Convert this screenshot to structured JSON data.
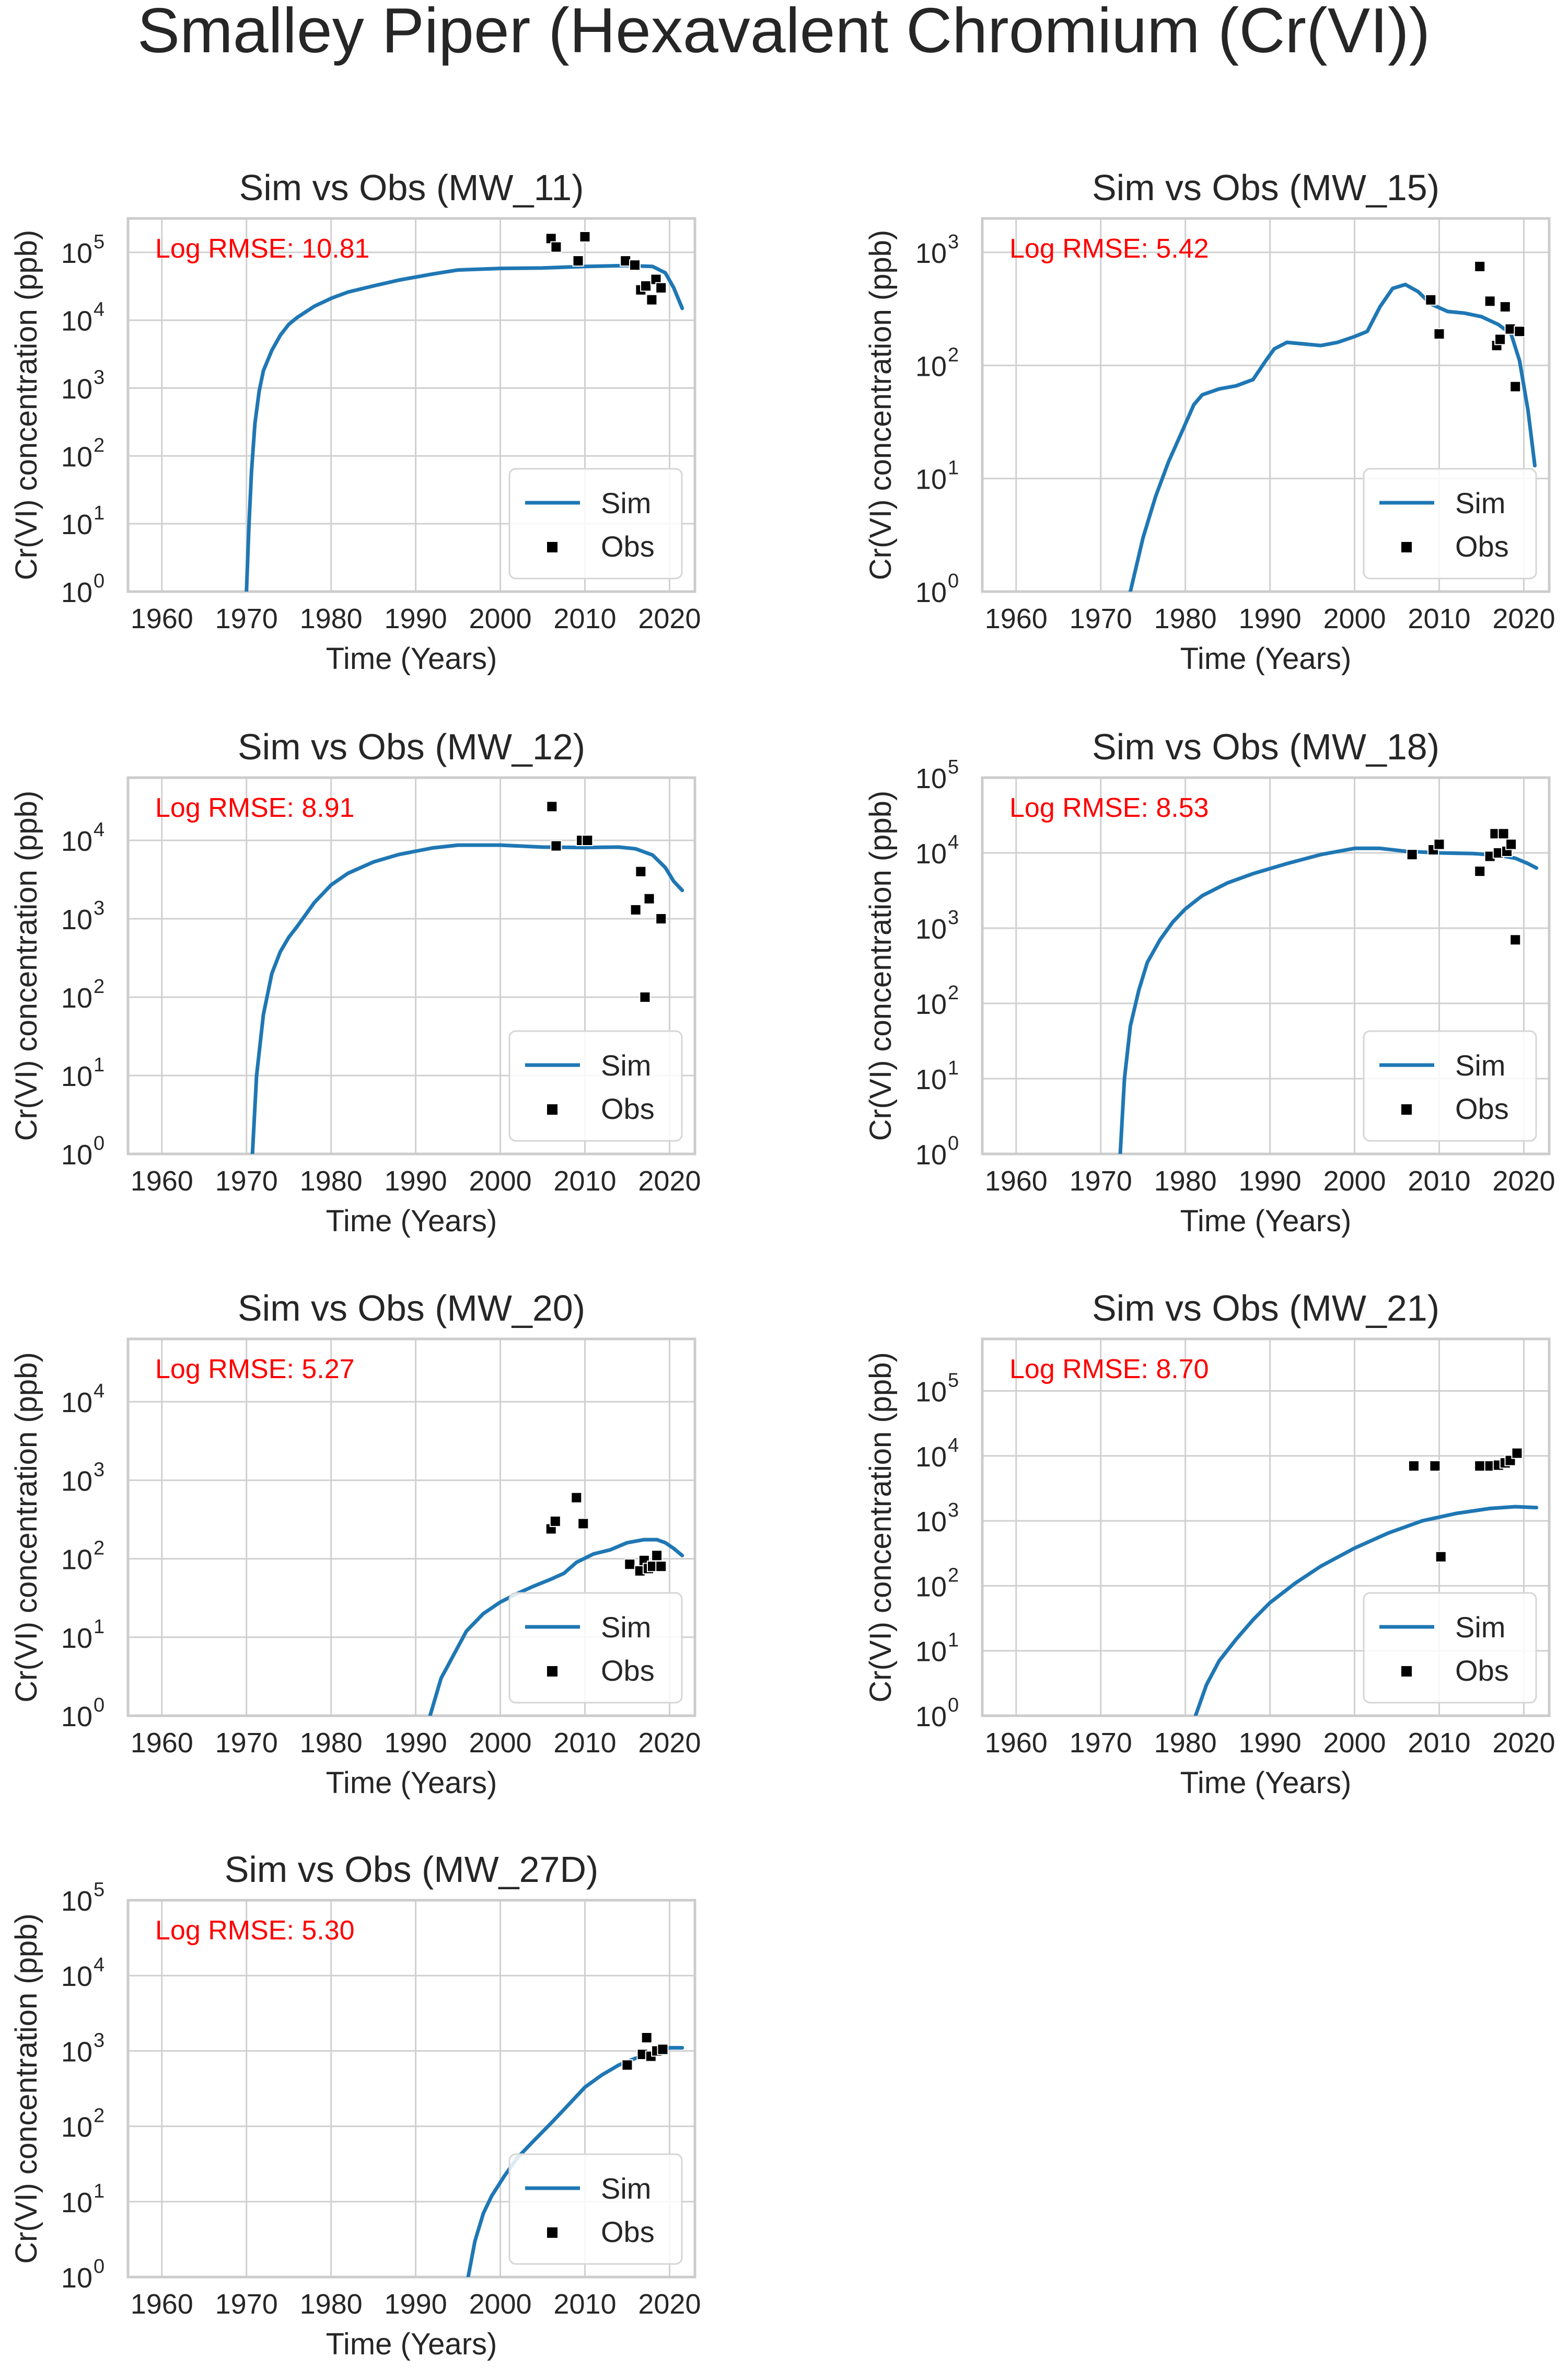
{
  "figure": {
    "title": "Smalley Piper (Hexavalent Chromium (Cr(VI))",
    "colors": {
      "sim": "#1f77b4",
      "obs": "#000000",
      "rmse": "#ff0000",
      "grid": "#d0d0d0",
      "frame": "#cccccc"
    }
  },
  "chart_data": [
    {
      "type": "line+scatter",
      "title": "Sim vs Obs (MW_11)",
      "rmse_label": "Log RMSE: 10.81",
      "xlabel": "Time (Years)",
      "ylabel": "Cr(VI) concentration (ppb)",
      "xlim": [
        1956,
        2023
      ],
      "xticks": [
        "1960",
        "1970",
        "1980",
        "1990",
        "2000",
        "2010",
        "2020"
      ],
      "yscale": "log",
      "ylim_exp": [
        0,
        5.5
      ],
      "ytick_exps": [
        "0",
        "1",
        "2",
        "3",
        "4",
        "5"
      ],
      "legend": {
        "position": "lower right",
        "sim": "Sim",
        "obs": "Obs"
      },
      "sim": {
        "x": [
          1970.0,
          1970.3,
          1970.6,
          1971,
          1971.5,
          1972,
          1973,
          1974,
          1975,
          1976,
          1978,
          1980,
          1982,
          1985,
          1988,
          1992,
          1995,
          2000,
          2005,
          2010,
          2015,
          2018,
          2019.5,
          2020.5,
          2021.5
        ],
        "y": [
          1,
          10,
          60,
          300,
          900,
          1800,
          3600,
          6000,
          8700,
          11000,
          16000,
          21000,
          26000,
          32000,
          39000,
          48000,
          55000,
          58000,
          59000,
          62000,
          64000,
          62000,
          50000,
          30000,
          15000
        ]
      },
      "obs": {
        "x": [
          2006.0,
          2006.6,
          2009.2,
          2010.0,
          2014.8,
          2015.9,
          2016.6,
          2017.2,
          2017.9,
          2018.4,
          2019.0
        ],
        "y": [
          160000,
          120000,
          75000,
          170000,
          75000,
          65000,
          28000,
          32000,
          20000,
          40000,
          30000
        ]
      }
    },
    {
      "type": "line+scatter",
      "title": "Sim vs Obs (MW_15)",
      "rmse_label": "Log RMSE: 5.42",
      "xlabel": "Time (Years)",
      "ylabel": "Cr(VI) concentration (ppb)",
      "xlim": [
        1956,
        2023
      ],
      "xticks": [
        "1960",
        "1970",
        "1980",
        "1990",
        "2000",
        "2010",
        "2020"
      ],
      "yscale": "log",
      "ylim_exp": [
        0,
        3.3
      ],
      "ytick_exps": [
        "0",
        "1",
        "2",
        "3"
      ],
      "legend": {
        "position": "lower right",
        "sim": "Sim",
        "obs": "Obs"
      },
      "sim": {
        "x": [
          1973.5,
          1975,
          1976.5,
          1978,
          1979.5,
          1981,
          1982,
          1984,
          1986,
          1988,
          1989.5,
          1990.5,
          1992,
          1994,
          1996,
          1998,
          2000,
          2001.5,
          2003,
          2004.5,
          2006,
          2007.5,
          2009,
          2011,
          2013,
          2015,
          2017,
          2018.5,
          2019.5,
          2020.5,
          2021.3
        ],
        "y": [
          1,
          3,
          7,
          14,
          25,
          45,
          55,
          62,
          66,
          75,
          110,
          140,
          160,
          155,
          150,
          160,
          180,
          200,
          330,
          480,
          520,
          450,
          350,
          300,
          290,
          270,
          230,
          190,
          110,
          40,
          13
        ]
      },
      "obs": {
        "x": [
          2009.0,
          2010.0,
          2014.8,
          2016.0,
          2016.8,
          2017.2,
          2017.8,
          2018.4,
          2019.0,
          2019.5
        ],
        "y": [
          380,
          190,
          750,
          370,
          150,
          170,
          330,
          210,
          65,
          200
        ]
      }
    },
    {
      "type": "line+scatter",
      "title": "Sim vs Obs (MW_12)",
      "rmse_label": "Log RMSE: 8.91",
      "xlabel": "Time (Years)",
      "ylabel": "Cr(VI) concentration (ppb)",
      "xlim": [
        1956,
        2023
      ],
      "xticks": [
        "1960",
        "1970",
        "1980",
        "1990",
        "2000",
        "2010",
        "2020"
      ],
      "yscale": "log",
      "ylim_exp": [
        0,
        4.8
      ],
      "ytick_exps": [
        "0",
        "1",
        "2",
        "3",
        "4"
      ],
      "legend": {
        "position": "lower right",
        "sim": "Sim",
        "obs": "Obs"
      },
      "sim": {
        "x": [
          1970.7,
          1971.2,
          1972,
          1973,
          1974,
          1975,
          1976,
          1978,
          1980,
          1982,
          1985,
          1988,
          1992,
          1995,
          2000,
          2005,
          2010,
          2014,
          2016,
          2018,
          2019.5,
          2020.5,
          2021.5
        ],
        "y": [
          1,
          10,
          60,
          200,
          380,
          580,
          800,
          1600,
          2700,
          3800,
          5300,
          6600,
          8000,
          8700,
          8700,
          8200,
          8100,
          8200,
          7800,
          6500,
          4500,
          3000,
          2300
        ]
      },
      "obs": {
        "x": [
          2006.1,
          2006.6,
          2009.6,
          2010.3,
          2016.0,
          2016.6,
          2017.1,
          2017.6,
          2019.0
        ],
        "y": [
          27000,
          8500,
          10000,
          10000,
          1300,
          4000,
          100,
          1800,
          1000
        ]
      }
    },
    {
      "type": "line+scatter",
      "title": "Sim vs Obs (MW_18)",
      "rmse_label": "Log RMSE: 8.53",
      "xlabel": "Time (Years)",
      "ylabel": "Cr(VI) concentration (ppb)",
      "xlim": [
        1956,
        2023
      ],
      "xticks": [
        "1960",
        "1970",
        "1980",
        "1990",
        "2000",
        "2010",
        "2020"
      ],
      "yscale": "log",
      "ylim_exp": [
        0,
        5
      ],
      "ytick_exps": [
        "0",
        "1",
        "2",
        "3",
        "4",
        "5"
      ],
      "legend": {
        "position": "lower right",
        "sim": "Sim",
        "obs": "Obs"
      },
      "sim": {
        "x": [
          1972.3,
          1972.8,
          1973.5,
          1974.5,
          1975.5,
          1977,
          1978.5,
          1980,
          1982,
          1985,
          1988,
          1992,
          1996,
          2000,
          2003,
          2006,
          2010,
          2014,
          2017,
          2019,
          2020.5,
          2021.5
        ],
        "y": [
          1,
          10,
          50,
          150,
          350,
          700,
          1200,
          1800,
          2700,
          4000,
          5300,
          7200,
          9500,
          11500,
          11500,
          10500,
          10000,
          9800,
          9300,
          8500,
          7200,
          6300
        ]
      },
      "obs": {
        "x": [
          2006.8,
          2009.3,
          2010.0,
          2014.8,
          2016.0,
          2016.6,
          2017.0,
          2017.6,
          2018.0,
          2018.5,
          2019.0
        ],
        "y": [
          9500,
          11000,
          13000,
          5700,
          9000,
          18000,
          10000,
          18000,
          10500,
          13000,
          700
        ]
      }
    },
    {
      "type": "line+scatter",
      "title": "Sim vs Obs (MW_20)",
      "rmse_label": "Log RMSE: 5.27",
      "xlabel": "Time (Years)",
      "ylabel": "Cr(VI) concentration (ppb)",
      "xlim": [
        1956,
        2023
      ],
      "xticks": [
        "1960",
        "1970",
        "1980",
        "1990",
        "2000",
        "2010",
        "2020"
      ],
      "yscale": "log",
      "ylim_exp": [
        0,
        4.8
      ],
      "ytick_exps": [
        "0",
        "1",
        "2",
        "3",
        "4"
      ],
      "legend": {
        "position": "lower right",
        "sim": "Sim",
        "obs": "Obs"
      },
      "sim": {
        "x": [
          1991.7,
          1993,
          1994.5,
          1996,
          1998,
          2000,
          2002,
          2004,
          2006,
          2007.5,
          2009,
          2011,
          2013,
          2015,
          2017,
          2018.5,
          2019.5,
          2020.5,
          2021.5
        ],
        "y": [
          1,
          3,
          6,
          12,
          20,
          28,
          36,
          45,
          55,
          65,
          90,
          115,
          130,
          160,
          175,
          175,
          160,
          135,
          110
        ]
      },
      "obs": {
        "x": [
          2006.0,
          2006.5,
          2009.0,
          2009.8,
          2015.3,
          2016.5,
          2017.0,
          2017.5,
          2018.0,
          2018.5,
          2019.0
        ],
        "y": [
          240,
          300,
          600,
          280,
          85,
          70,
          95,
          75,
          80,
          110,
          80
        ]
      }
    },
    {
      "type": "line+scatter",
      "title": "Sim vs Obs (MW_21)",
      "rmse_label": "Log RMSE: 8.70",
      "xlabel": "Time (Years)",
      "ylabel": "Cr(VI) concentration (ppb)",
      "xlim": [
        1956,
        2023
      ],
      "xticks": [
        "1960",
        "1970",
        "1980",
        "1990",
        "2000",
        "2010",
        "2020"
      ],
      "yscale": "log",
      "ylim_exp": [
        0,
        5.8
      ],
      "ytick_exps": [
        "0",
        "1",
        "2",
        "3",
        "4",
        "5"
      ],
      "legend": {
        "position": "lower right",
        "sim": "Sim",
        "obs": "Obs"
      },
      "sim": {
        "x": [
          1981.2,
          1982.5,
          1984,
          1986,
          1988,
          1990,
          1993,
          1996,
          2000,
          2004,
          2008,
          2012,
          2016,
          2019,
          2021.5
        ],
        "y": [
          1,
          3,
          7,
          15,
          30,
          55,
          110,
          200,
          380,
          650,
          1000,
          1300,
          1550,
          1650,
          1600
        ]
      },
      "obs": {
        "x": [
          2007.0,
          2009.5,
          2010.2,
          2014.8,
          2016.0,
          2017.0,
          2017.8,
          2018.4,
          2019.2
        ],
        "y": [
          7000,
          7000,
          280,
          7000,
          7000,
          7200,
          7800,
          8500,
          11000
        ]
      }
    },
    {
      "type": "line+scatter",
      "title": "Sim vs Obs (MW_27D)",
      "rmse_label": "Log RMSE: 5.30",
      "xlabel": "Time (Years)",
      "ylabel": "Cr(VI) concentration (ppb)",
      "xlim": [
        1956,
        2023
      ],
      "xticks": [
        "1960",
        "1970",
        "1980",
        "1990",
        "2000",
        "2010",
        "2020"
      ],
      "yscale": "log",
      "ylim_exp": [
        0,
        5
      ],
      "ytick_exps": [
        "0",
        "1",
        "2",
        "3",
        "4",
        "5"
      ],
      "legend": {
        "position": "lower right",
        "sim": "Sim",
        "obs": "Obs"
      },
      "sim": {
        "x": [
          1996.2,
          1997,
          1998,
          1999,
          2000.5,
          2002,
          2004,
          2006,
          2008,
          2010,
          2012,
          2014,
          2016,
          2018,
          2020,
          2021.5
        ],
        "y": [
          1,
          3,
          7,
          12,
          22,
          38,
          65,
          110,
          190,
          330,
          480,
          650,
          800,
          950,
          1100,
          1100
        ]
      },
      "obs": {
        "x": [
          2015.0,
          2016.8,
          2017.3,
          2017.8,
          2018.5,
          2019.2
        ],
        "y": [
          650,
          900,
          1500,
          850,
          1000,
          1050
        ]
      }
    }
  ]
}
